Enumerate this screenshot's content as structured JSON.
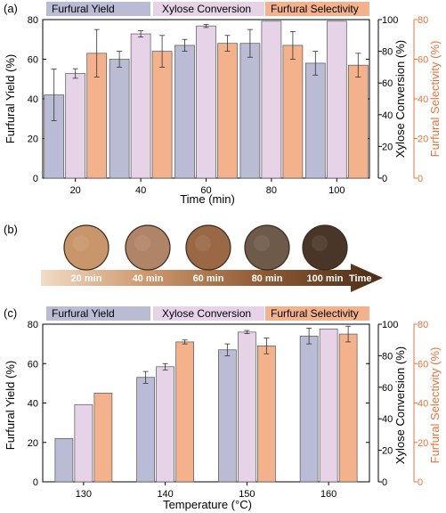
{
  "panel_a": {
    "label": "(a)",
    "legend": [
      "Furfural Yield",
      "Xylose Conversion",
      "Furfural Selectivity"
    ],
    "xlabel": "Time (min)",
    "ylabel_left": "Furfural Yield (%)",
    "ylabel_mid": "Xylose Conversion (%)",
    "ylabel_right": "Furfural Selectivity (%)"
  },
  "panel_b": {
    "label": "(b)",
    "arrow_label": "Time",
    "samples": [
      {
        "label": "20 min",
        "color": "#c8966a"
      },
      {
        "label": "40 min",
        "color": "#b08466"
      },
      {
        "label": "60 min",
        "color": "#9a6844"
      },
      {
        "label": "80 min",
        "color": "#6e5a48"
      },
      {
        "label": "100 min",
        "color": "#4a3628"
      }
    ]
  },
  "panel_c": {
    "label": "(c)",
    "legend": [
      "Furfural Yield",
      "Xylose Conversion",
      "Furfural Selectivity"
    ],
    "xlabel": "Temperature (°C)",
    "ylabel_left": "Furfural Yield (%)",
    "ylabel_mid": "Xylose Conversion (%)",
    "ylabel_right": "Furfural Selectivity (%)"
  },
  "colors": {
    "yield": "#b9bcd4",
    "conversion": "#e7d3e7",
    "selectivity": "#f4b28c",
    "right_axis": "#e8743b"
  },
  "chart_data": [
    {
      "type": "bar",
      "categories": [
        "20",
        "40",
        "60",
        "80",
        "100"
      ],
      "xlabel": "Time (min)",
      "series": [
        {
          "name": "Furfural Yield",
          "axis": "left",
          "values": [
            42,
            60,
            67,
            68,
            58
          ],
          "errors": [
            13,
            4,
            3,
            7,
            6
          ]
        },
        {
          "name": "Xylose Conversion",
          "axis": "mid",
          "values": [
            66,
            91,
            96,
            99,
            99
          ],
          "errors": [
            3,
            2,
            1,
            0,
            0
          ]
        },
        {
          "name": "Furfural Selectivity",
          "axis": "right",
          "values": [
            63,
            64,
            68,
            67,
            57
          ],
          "errors": [
            12,
            8,
            4,
            7,
            6
          ]
        }
      ],
      "ylim_left": [
        0,
        80
      ],
      "yticks_left": [
        0,
        20,
        40,
        60,
        80
      ],
      "ylim_mid": [
        0,
        100
      ],
      "yticks_mid": [
        0,
        20,
        40,
        60,
        80,
        100
      ],
      "ylim_right": [
        0,
        80
      ],
      "yticks_right": [
        0,
        20,
        40,
        60,
        80
      ]
    },
    {
      "type": "bar",
      "categories": [
        "130",
        "140",
        "150",
        "160"
      ],
      "xlabel": "Temperature (°C)",
      "series": [
        {
          "name": "Furfural Yield",
          "axis": "left",
          "values": [
            22,
            53,
            67,
            74
          ],
          "errors": [
            0,
            3,
            3,
            4
          ]
        },
        {
          "name": "Xylose Conversion",
          "axis": "mid",
          "values": [
            49,
            73,
            95,
            97
          ],
          "errors": [
            0,
            2,
            1,
            0
          ]
        },
        {
          "name": "Furfural Selectivity",
          "axis": "right",
          "values": [
            45,
            71,
            69,
            75
          ],
          "errors": [
            0,
            1,
            4,
            4
          ]
        }
      ],
      "ylim_left": [
        0,
        80
      ],
      "yticks_left": [
        0,
        20,
        40,
        60,
        80
      ],
      "ylim_mid": [
        0,
        100
      ],
      "yticks_mid": [
        0,
        20,
        40,
        60,
        80,
        100
      ],
      "ylim_right": [
        0,
        80
      ],
      "yticks_right": [
        0,
        20,
        40,
        60,
        80
      ]
    }
  ]
}
